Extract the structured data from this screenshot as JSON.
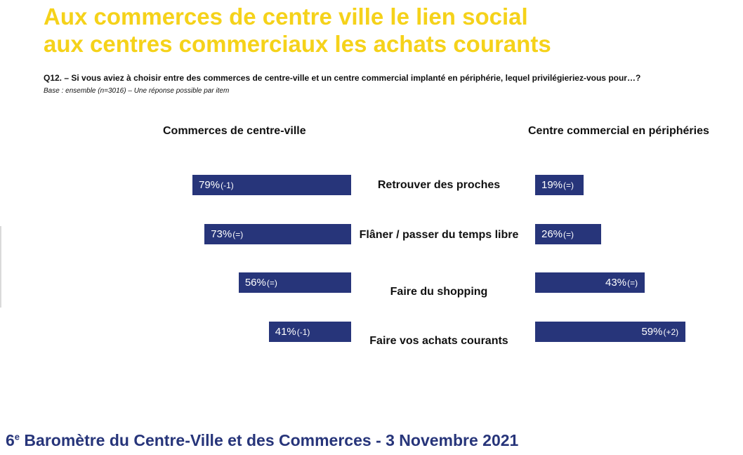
{
  "title_line1": "Aux commerces de centre ville le lien social",
  "title_line2": "aux centres commerciaux les achats courants",
  "question": "Q12. – Si vous aviez à choisir entre des commerces de centre-ville et un centre commercial implanté en périphérie, lequel privilégieriez-vous pour…?",
  "base": "Base : ensemble (n=3016) – Une réponse possible par item",
  "footer": {
    "num": "6",
    "sup": "e",
    "text": " Baromètre du Centre-Ville et des Commerces - 3 Novembre 2021"
  },
  "colors": {
    "bar": "#27357a",
    "title": "#f5d21a",
    "footer": "#27357a"
  },
  "chart_data": {
    "type": "bar",
    "orientation": "horizontal-diverging",
    "left_header": "Commerces de centre-ville",
    "right_header": "Centre commercial en périphéries",
    "categories": [
      "Retrouver des proches",
      "Flâner / passer du temps libre",
      "Faire du shopping",
      "Faire vos achats courants"
    ],
    "series": [
      {
        "name": "Commerces de centre-ville",
        "values": [
          79,
          73,
          56,
          41
        ],
        "labels": [
          "79%",
          "73%",
          "56%",
          "41%"
        ],
        "deltas": [
          "(-1)",
          "(=)",
          "(=)",
          "(-1)"
        ]
      },
      {
        "name": "Centre commercial en périphéries",
        "values": [
          19,
          26,
          43,
          59
        ],
        "labels": [
          "19%",
          "26%",
          "43%",
          "59%"
        ],
        "deltas": [
          "(=)",
          "(=)",
          "(=)",
          "(+2)"
        ]
      }
    ],
    "unit": "%"
  }
}
